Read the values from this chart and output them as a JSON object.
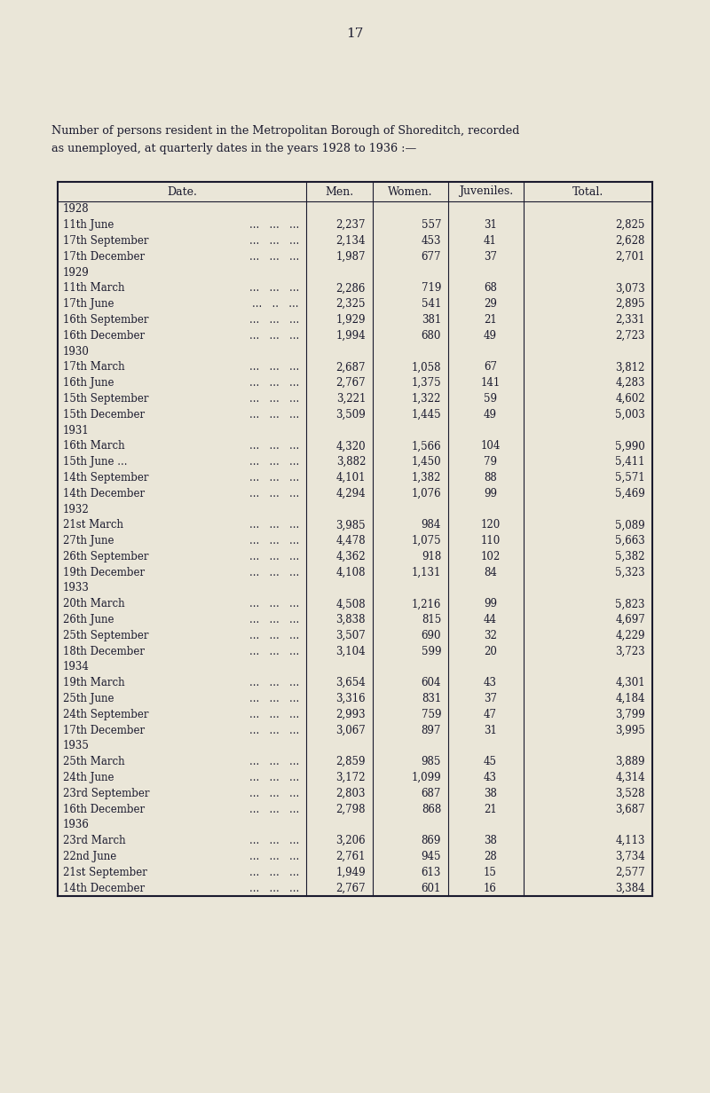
{
  "page_number": "17",
  "title_line1": "Number of persons resident in the Metropolitan Borough of Shoreditch, recorded",
  "title_line2": "as unemployed, at quarterly dates in the years 1928 to 1936 :—",
  "background_color": "#eae6d8",
  "text_color": "#1a1a2e",
  "rows": [
    {
      "year": "1928",
      "date": null,
      "men": null,
      "women": null,
      "juveniles": null,
      "total": null
    },
    {
      "year": null,
      "date": "11th June",
      "dots": "...   ...   ...",
      "men": "2,237",
      "women": "557",
      "juveniles": "31",
      "total": "2,825"
    },
    {
      "year": null,
      "date": "17th September",
      "dots": "...   ...   ...",
      "men": "2,134",
      "women": "453",
      "juveniles": "41",
      "total": "2,628"
    },
    {
      "year": null,
      "date": "17th December",
      "dots": "...   ...   ...",
      "men": "1,987",
      "women": "677",
      "juveniles": "37",
      "total": "2,701"
    },
    {
      "year": "1929",
      "date": null,
      "men": null,
      "women": null,
      "juveniles": null,
      "total": null
    },
    {
      "year": null,
      "date": "11th March",
      "dots": "...   ...   ...",
      "men": "2,286",
      "women": "719",
      "juveniles": "68",
      "total": "3,073"
    },
    {
      "year": null,
      "date": "17th June",
      "dots": "...   ..   ...",
      "men": "2,325",
      "women": "541",
      "juveniles": "29",
      "total": "2,895"
    },
    {
      "year": null,
      "date": "16th September",
      "dots": "...   ...   ...",
      "men": "1,929",
      "women": "381",
      "juveniles": "21",
      "total": "2,331"
    },
    {
      "year": null,
      "date": "16th December",
      "dots": "...   ...   ...",
      "men": "1,994",
      "women": "680",
      "juveniles": "49",
      "total": "2,723"
    },
    {
      "year": "1930",
      "date": null,
      "men": null,
      "women": null,
      "juveniles": null,
      "total": null
    },
    {
      "year": null,
      "date": "17th March",
      "dots": "...   ...   ...",
      "men": "2,687",
      "women": "1,058",
      "juveniles": "67",
      "total": "3,812"
    },
    {
      "year": null,
      "date": "16th June",
      "dots": "...   ...   ...",
      "men": "2,767",
      "women": "1,375",
      "juveniles": "141",
      "total": "4,283"
    },
    {
      "year": null,
      "date": "15th September",
      "dots": "...   ...   ...",
      "men": "3,221",
      "women": "1,322",
      "juveniles": "59",
      "total": "4,602"
    },
    {
      "year": null,
      "date": "15th December",
      "dots": "...   ...   ...",
      "men": "3,509",
      "women": "1,445",
      "juveniles": "49",
      "total": "5,003"
    },
    {
      "year": "1931",
      "date": null,
      "men": null,
      "women": null,
      "juveniles": null,
      "total": null
    },
    {
      "year": null,
      "date": "16th March",
      "dots": "...   ...   ...",
      "men": "4,320",
      "women": "1,566",
      "juveniles": "104",
      "total": "5,990"
    },
    {
      "year": null,
      "date": "15th June ...",
      "dots": "...   ...   ...",
      "men": "3,882",
      "women": "1,450",
      "juveniles": "79",
      "total": "5,411"
    },
    {
      "year": null,
      "date": "14th September",
      "dots": "...   ...   ...",
      "men": "4,101",
      "women": "1,382",
      "juveniles": "88",
      "total": "5,571"
    },
    {
      "year": null,
      "date": "14th December",
      "dots": "...   ...   ...",
      "men": "4,294",
      "women": "1,076",
      "juveniles": "99",
      "total": "5,469"
    },
    {
      "year": "1932",
      "date": null,
      "men": null,
      "women": null,
      "juveniles": null,
      "total": null
    },
    {
      "year": null,
      "date": "21st March",
      "dots": "...   ...   ...",
      "men": "3,985",
      "women": "984",
      "juveniles": "120",
      "total": "5,089"
    },
    {
      "year": null,
      "date": "27th June",
      "dots": "...   ...   ...",
      "men": "4,478",
      "women": "1,075",
      "juveniles": "110",
      "total": "5,663"
    },
    {
      "year": null,
      "date": "26th September",
      "dots": "...   ...   ...",
      "men": "4,362",
      "women": "918",
      "juveniles": "102",
      "total": "5,382"
    },
    {
      "year": null,
      "date": "19th December",
      "dots": "...   ...   ...",
      "men": "4,108",
      "women": "1,131",
      "juveniles": "84",
      "total": "5,323"
    },
    {
      "year": "1933",
      "date": null,
      "men": null,
      "women": null,
      "juveniles": null,
      "total": null
    },
    {
      "year": null,
      "date": "20th March",
      "dots": "...   ...   ...",
      "men": "4,508",
      "women": "1,216",
      "juveniles": "99",
      "total": "5,823"
    },
    {
      "year": null,
      "date": "26th June",
      "dots": "...   ...   ...",
      "men": "3,838",
      "women": "815",
      "juveniles": "44",
      "total": "4,697"
    },
    {
      "year": null,
      "date": "25th September",
      "dots": "...   ...   ...",
      "men": "3,507",
      "women": "690",
      "juveniles": "32",
      "total": "4,229"
    },
    {
      "year": null,
      "date": "18th December",
      "dots": "...   ...   ...",
      "men": "3,104",
      "women": "599",
      "juveniles": "20",
      "total": "3,723"
    },
    {
      "year": "1934",
      "date": null,
      "men": null,
      "women": null,
      "juveniles": null,
      "total": null
    },
    {
      "year": null,
      "date": "19th March",
      "dots": "...   ...   ...",
      "men": "3,654",
      "women": "604",
      "juveniles": "43",
      "total": "4,301"
    },
    {
      "year": null,
      "date": "25th June",
      "dots": "...   ...   ...",
      "men": "3,316",
      "women": "831",
      "juveniles": "37",
      "total": "4,184"
    },
    {
      "year": null,
      "date": "24th September",
      "dots": "...   ...   ...",
      "men": "2,993",
      "women": "759",
      "juveniles": "47",
      "total": "3,799"
    },
    {
      "year": null,
      "date": "17th December",
      "dots": "...   ...   ...",
      "men": "3,067",
      "women": "897",
      "juveniles": "31",
      "total": "3,995"
    },
    {
      "year": "1935",
      "date": null,
      "men": null,
      "women": null,
      "juveniles": null,
      "total": null
    },
    {
      "year": null,
      "date": "25th March",
      "dots": "...   ...   ...",
      "men": "2,859",
      "women": "985",
      "juveniles": "45",
      "total": "3,889"
    },
    {
      "year": null,
      "date": "24th June",
      "dots": "...   ...   ...",
      "men": "3,172",
      "women": "1,099",
      "juveniles": "43",
      "total": "4,314"
    },
    {
      "year": null,
      "date": "23rd September",
      "dots": "...   ...   ...",
      "men": "2,803",
      "women": "687",
      "juveniles": "38",
      "total": "3,528"
    },
    {
      "year": null,
      "date": "16th December",
      "dots": "...   ...   ...",
      "men": "2,798",
      "women": "868",
      "juveniles": "21",
      "total": "3,687"
    },
    {
      "year": "1936",
      "date": null,
      "men": null,
      "women": null,
      "juveniles": null,
      "total": null
    },
    {
      "year": null,
      "date": "23rd March",
      "dots": "...   ...   ...",
      "men": "3,206",
      "women": "869",
      "juveniles": "38",
      "total": "4,113"
    },
    {
      "year": null,
      "date": "22nd June",
      "dots": "...   ...   ...",
      "men": "2,761",
      "women": "945",
      "juveniles": "28",
      "total": "3,734"
    },
    {
      "year": null,
      "date": "21st September",
      "dots": "...   ...   ...",
      "men": "1,949",
      "women": "613",
      "juveniles": "15",
      "total": "2,577"
    },
    {
      "year": null,
      "date": "14th December",
      "dots": "...   ...   ...",
      "men": "2,767",
      "women": "601",
      "juveniles": "16",
      "total": "3,384"
    }
  ]
}
